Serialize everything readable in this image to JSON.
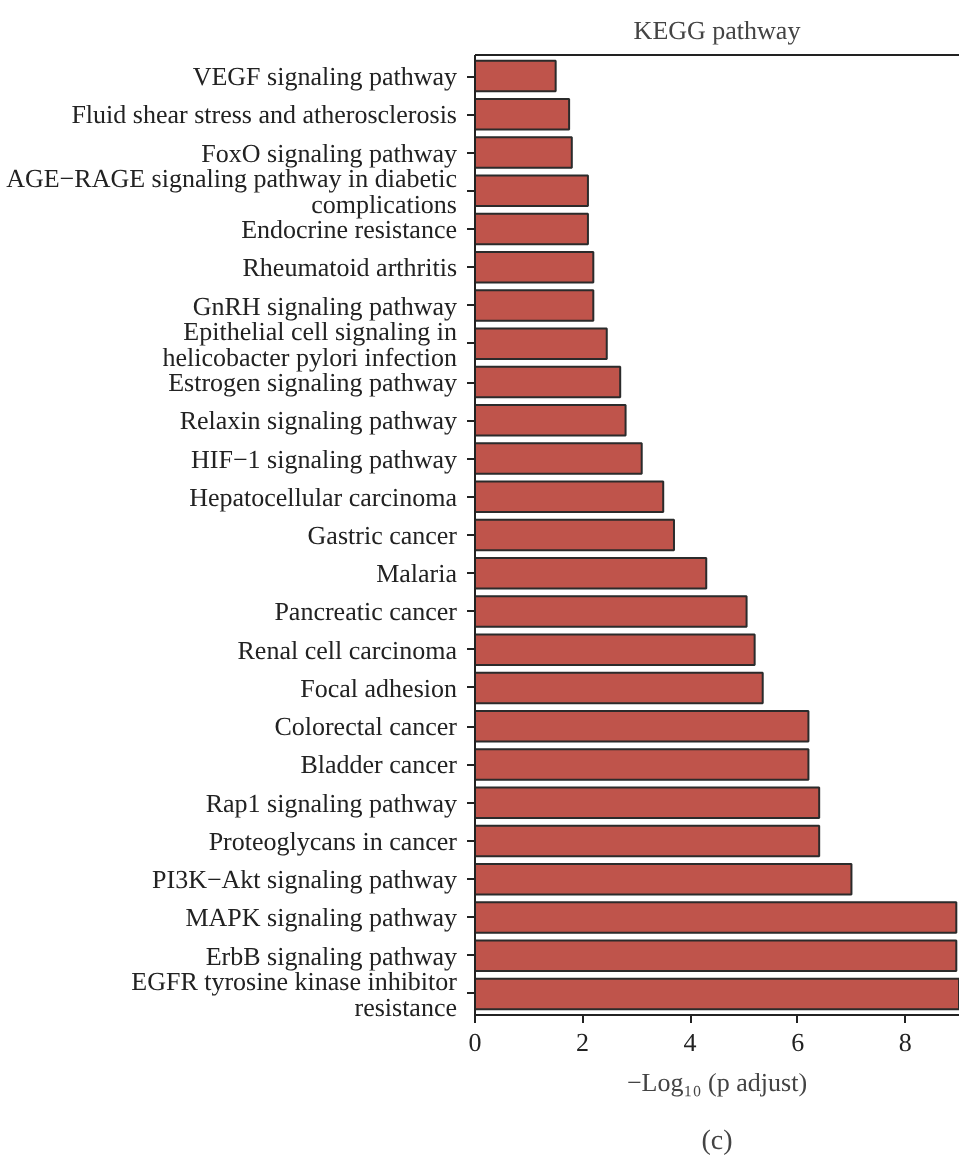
{
  "chart_data": {
    "type": "bar",
    "orientation": "horizontal",
    "title": "KEGG pathway",
    "xlabel": "−Log₁₀ (p adjust)",
    "categories": [
      "VEGF signaling pathway",
      "Fluid shear stress and atherosclerosis",
      "FoxO signaling pathway",
      "AGE−RAGE signaling pathway in diabetic complications",
      "Endocrine resistance",
      "Rheumatoid arthritis",
      "GnRH signaling pathway",
      "Epithelial cell signaling in helicobacter pylori infection",
      "Estrogen signaling pathway",
      "Relaxin signaling pathway",
      "HIF−1 signaling pathway",
      "Hepatocellular carcinoma",
      "Gastric cancer",
      "Malaria",
      "Pancreatic cancer",
      "Renal cell carcinoma",
      "Focal adhesion",
      "Colorectal cancer",
      "Bladder cancer",
      "Rap1 signaling pathway",
      "Proteoglycans in cancer",
      "PI3K−Akt signaling pathway",
      "MAPK signaling pathway",
      "ErbB signaling pathway",
      "EGFR tyrosine kinase inhibitor resistance"
    ],
    "values": [
      1.5,
      1.75,
      1.8,
      2.1,
      2.1,
      2.2,
      2.2,
      2.45,
      2.7,
      2.8,
      3.1,
      3.5,
      3.7,
      4.3,
      5.05,
      5.2,
      5.35,
      6.2,
      6.2,
      6.4,
      6.4,
      7.0,
      8.95,
      8.95,
      9.0
    ],
    "color": "#bf544b",
    "xlim": [
      0,
      9
    ],
    "xticks": [
      0,
      2,
      4,
      6,
      8
    ],
    "grid": false,
    "annotations": [
      "(c)"
    ]
  }
}
